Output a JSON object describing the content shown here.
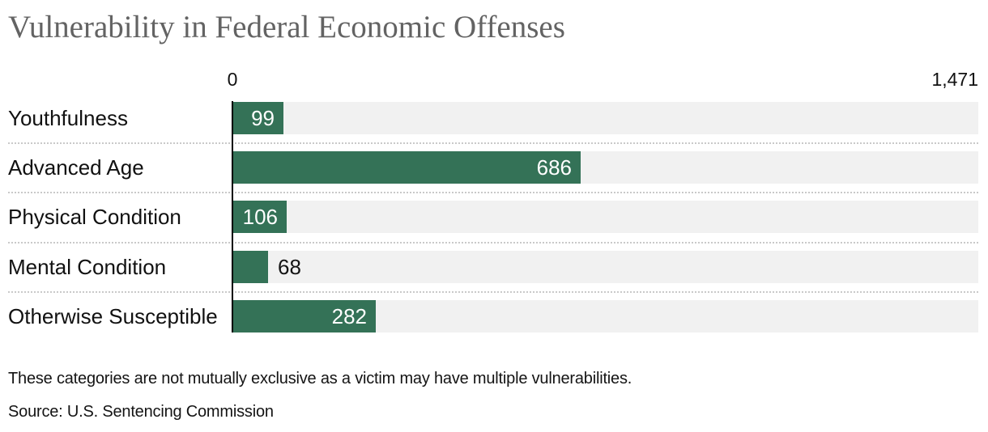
{
  "header": {
    "title": "Vulnerability in Federal Economic Offenses"
  },
  "axis": {
    "min_label": "0",
    "max_label": "1,471"
  },
  "footer": {
    "note": "These categories are not mutually exclusive as a victim may have multiple vulnerabilities.",
    "source": "Source: U.S. Sentencing Commission"
  },
  "chart_data": {
    "type": "bar",
    "orientation": "horizontal",
    "title": "Vulnerability in Federal Economic Offenses",
    "categories": [
      "Youthfulness",
      "Advanced Age",
      "Physical Condition",
      "Mental Condition",
      "Otherwise Susceptible"
    ],
    "values": [
      99,
      686,
      106,
      68,
      282
    ],
    "value_labels": [
      "99",
      "686",
      "106",
      "68",
      "282"
    ],
    "value_label_positions": [
      "inside",
      "inside",
      "inside",
      "outside",
      "inside"
    ],
    "xlim": [
      0,
      1471
    ],
    "x_tick_labels": [
      "0",
      "1,471"
    ],
    "xlabel": "",
    "ylabel": "",
    "grid": "dotted horizontal row separators",
    "legend": "none",
    "colors": {
      "bar": "#347257",
      "track": "#f1f1f1",
      "axis_line": "#000000",
      "separator": "#c9c9c9",
      "title_text": "#636363",
      "label_text": "#111111",
      "value_inside_text": "#ffffff",
      "value_outside_text": "#141414"
    },
    "notes": "These categories are not mutually exclusive as a victim may have multiple vulnerabilities.",
    "source": "Source: U.S. Sentencing Commission"
  }
}
